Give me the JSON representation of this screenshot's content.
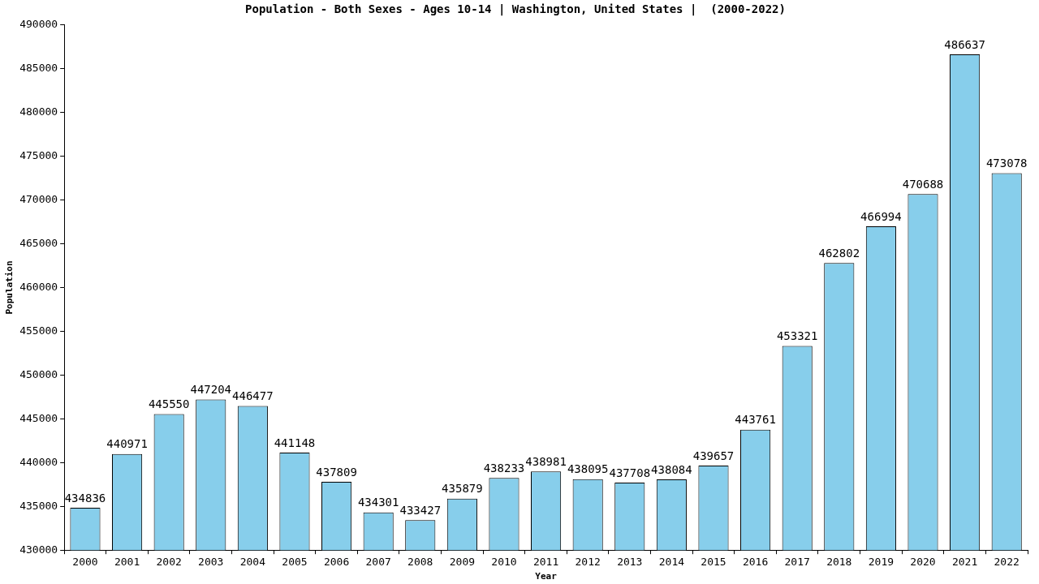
{
  "chart_data": {
    "type": "bar",
    "title": "Population - Both Sexes - Ages 10-14 | Washington, United States |  (2000-2022)",
    "x_label": "Year",
    "y_label": "Population",
    "categories": [
      "2000",
      "2001",
      "2002",
      "2003",
      "2004",
      "2005",
      "2006",
      "2007",
      "2008",
      "2009",
      "2010",
      "2011",
      "2012",
      "2013",
      "2014",
      "2015",
      "2016",
      "2017",
      "2018",
      "2019",
      "2020",
      "2021",
      "2022"
    ],
    "values": [
      434836,
      440971,
      445550,
      447204,
      446477,
      441148,
      437809,
      434301,
      433427,
      435879,
      438233,
      438981,
      438095,
      437708,
      438084,
      439657,
      443761,
      453321,
      462802,
      466994,
      470688,
      486637,
      473078
    ],
    "color": "#87ceeb",
    "ylim": [
      430000,
      490000
    ],
    "yticks": [
      430000,
      435000,
      440000,
      445000,
      450000,
      455000,
      460000,
      465000,
      470000,
      475000,
      480000,
      485000,
      490000
    ],
    "grid": false,
    "data_labels": true
  }
}
